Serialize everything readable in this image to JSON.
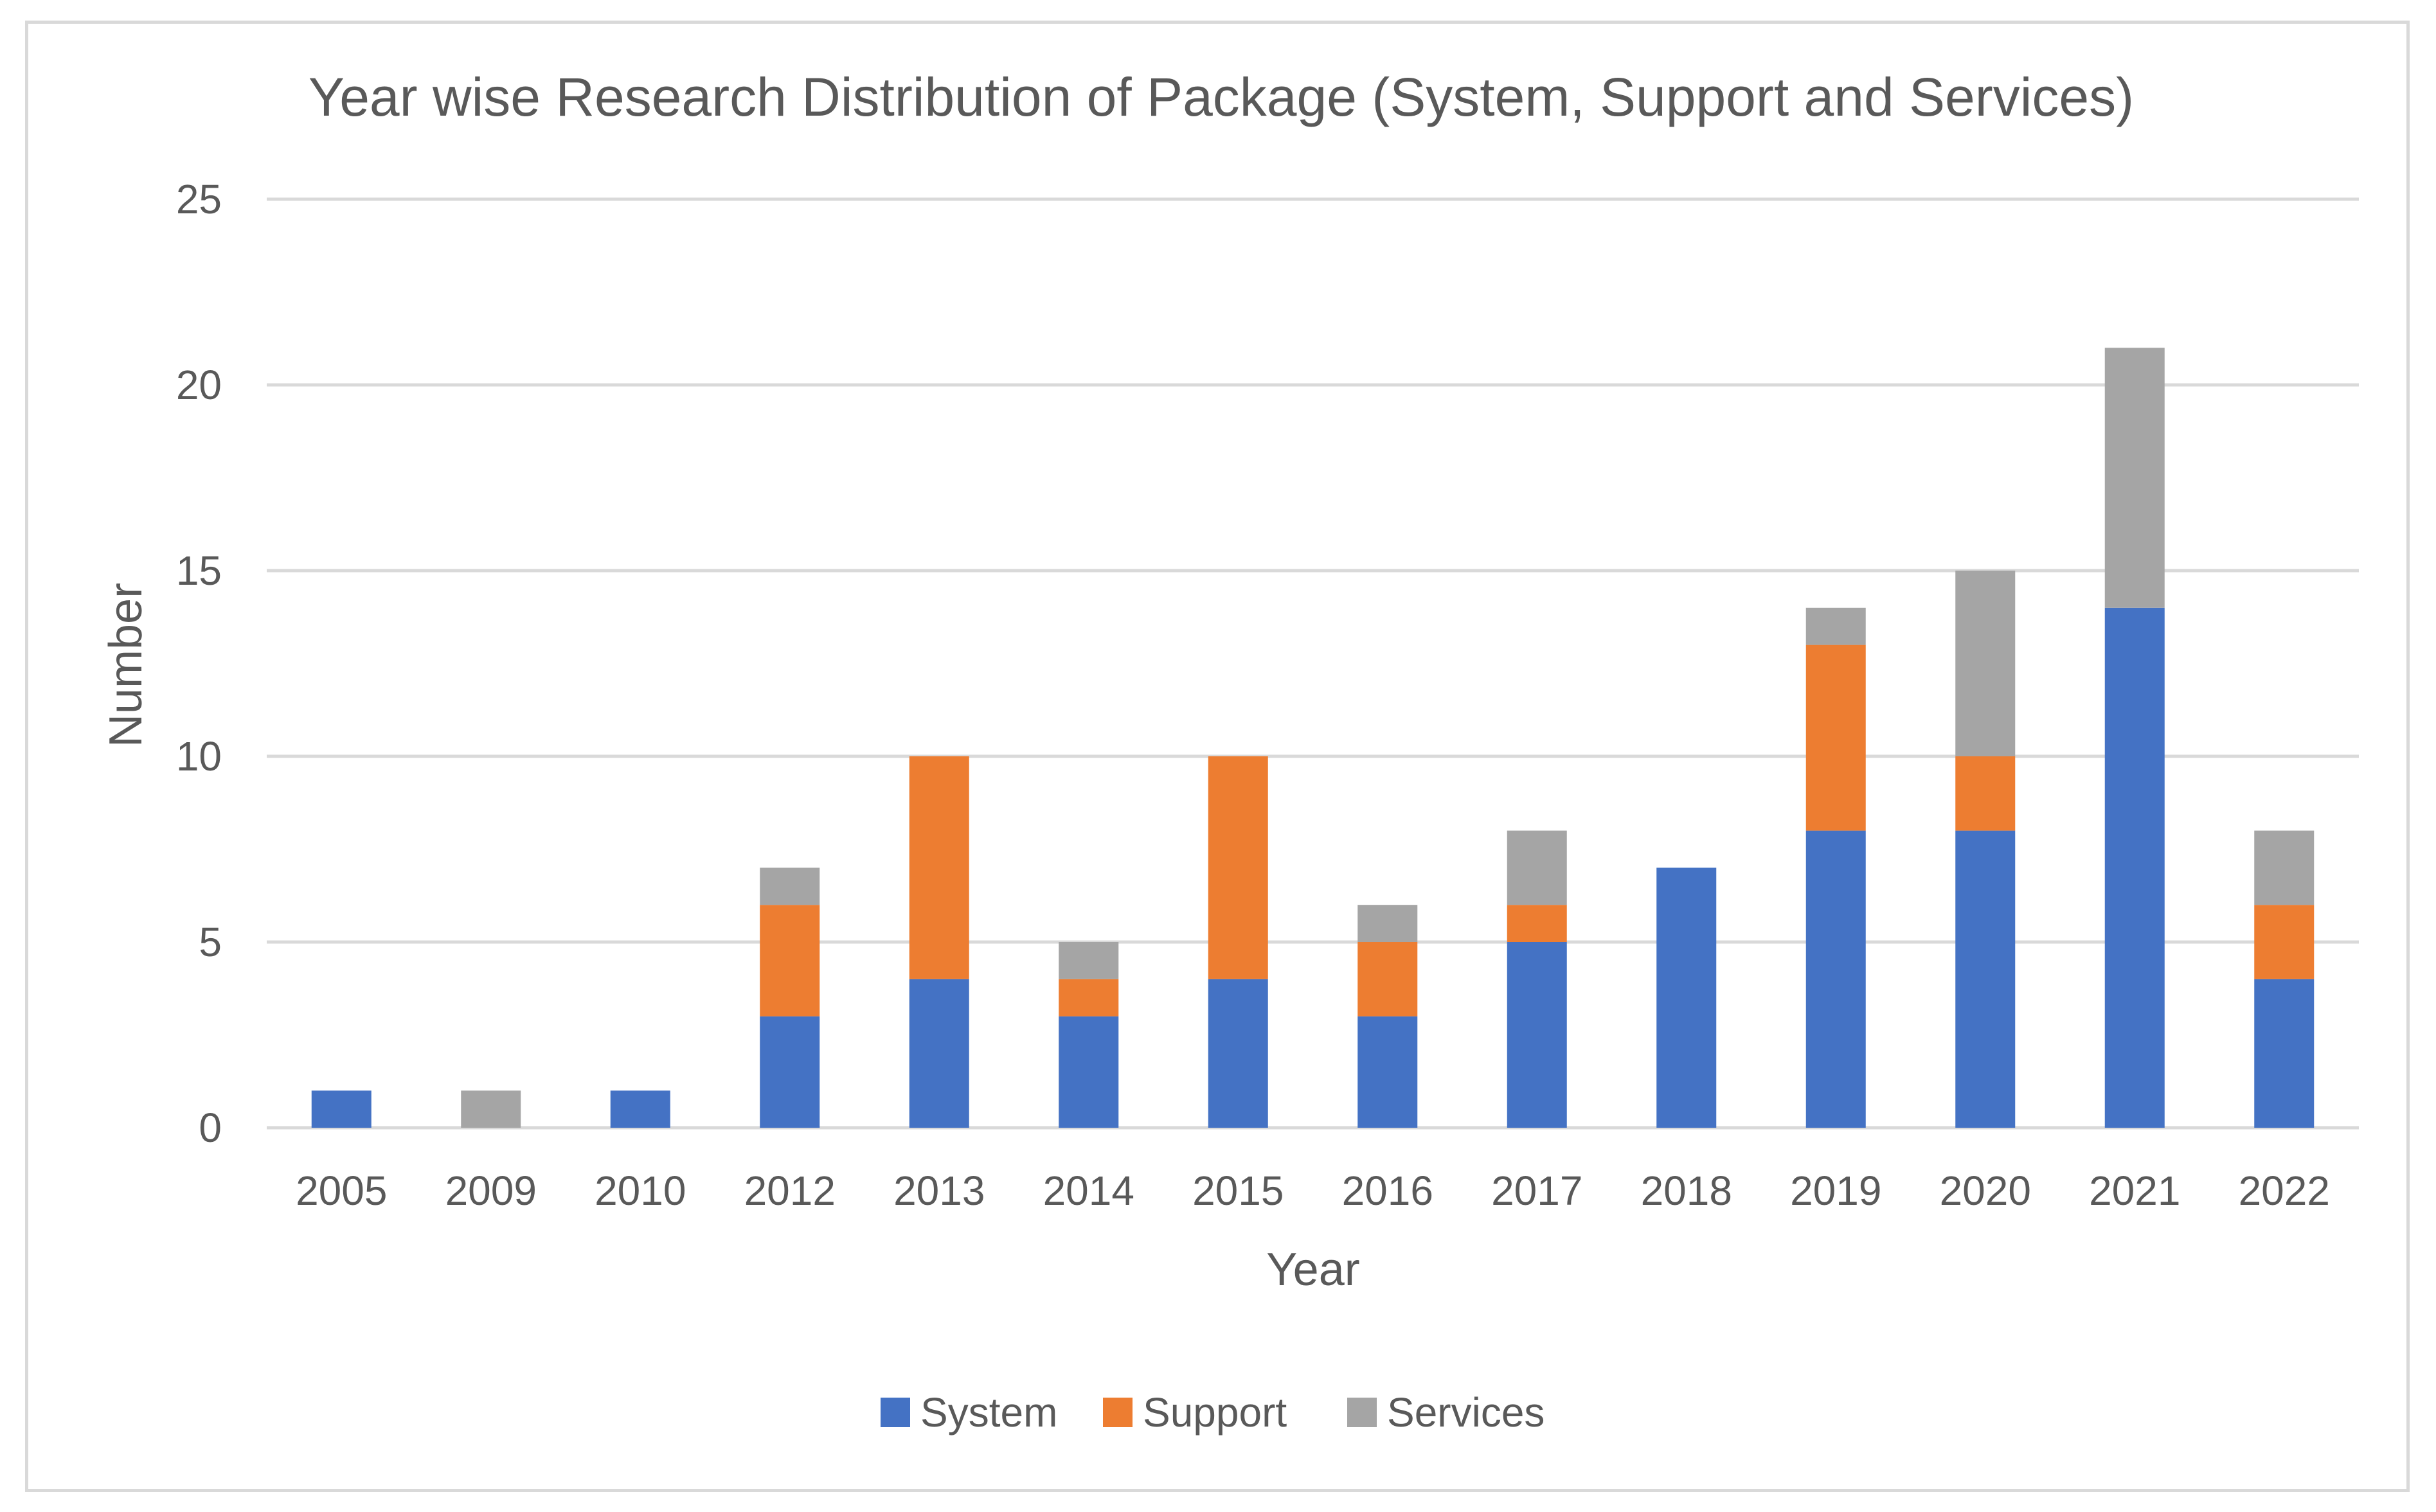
{
  "chart_data": {
    "type": "bar",
    "stacked": true,
    "title": "Year wise Research Distribution of Package (System, Support and Services)",
    "xlabel": "Year",
    "ylabel": "Number",
    "ylim": [
      0,
      25
    ],
    "yticks": [
      0,
      5,
      10,
      15,
      20,
      25
    ],
    "grid": true,
    "legend_position": "bottom",
    "categories": [
      "2005",
      "2009",
      "2010",
      "2012",
      "2013",
      "2014",
      "2015",
      "2016",
      "2017",
      "2018",
      "2019",
      "2020",
      "2021",
      "2022"
    ],
    "series": [
      {
        "name": "System",
        "color": "#4472c4",
        "values": [
          1,
          0,
          1,
          3,
          4,
          3,
          4,
          3,
          5,
          7,
          8,
          8,
          14,
          4
        ]
      },
      {
        "name": "Support",
        "color": "#ed7d31",
        "values": [
          0,
          0,
          0,
          3,
          6,
          1,
          6,
          2,
          1,
          0,
          5,
          2,
          0,
          2
        ]
      },
      {
        "name": "Services",
        "color": "#a5a5a5",
        "values": [
          0,
          1,
          0,
          1,
          0,
          1,
          0,
          1,
          2,
          0,
          1,
          5,
          7,
          2
        ]
      }
    ]
  }
}
